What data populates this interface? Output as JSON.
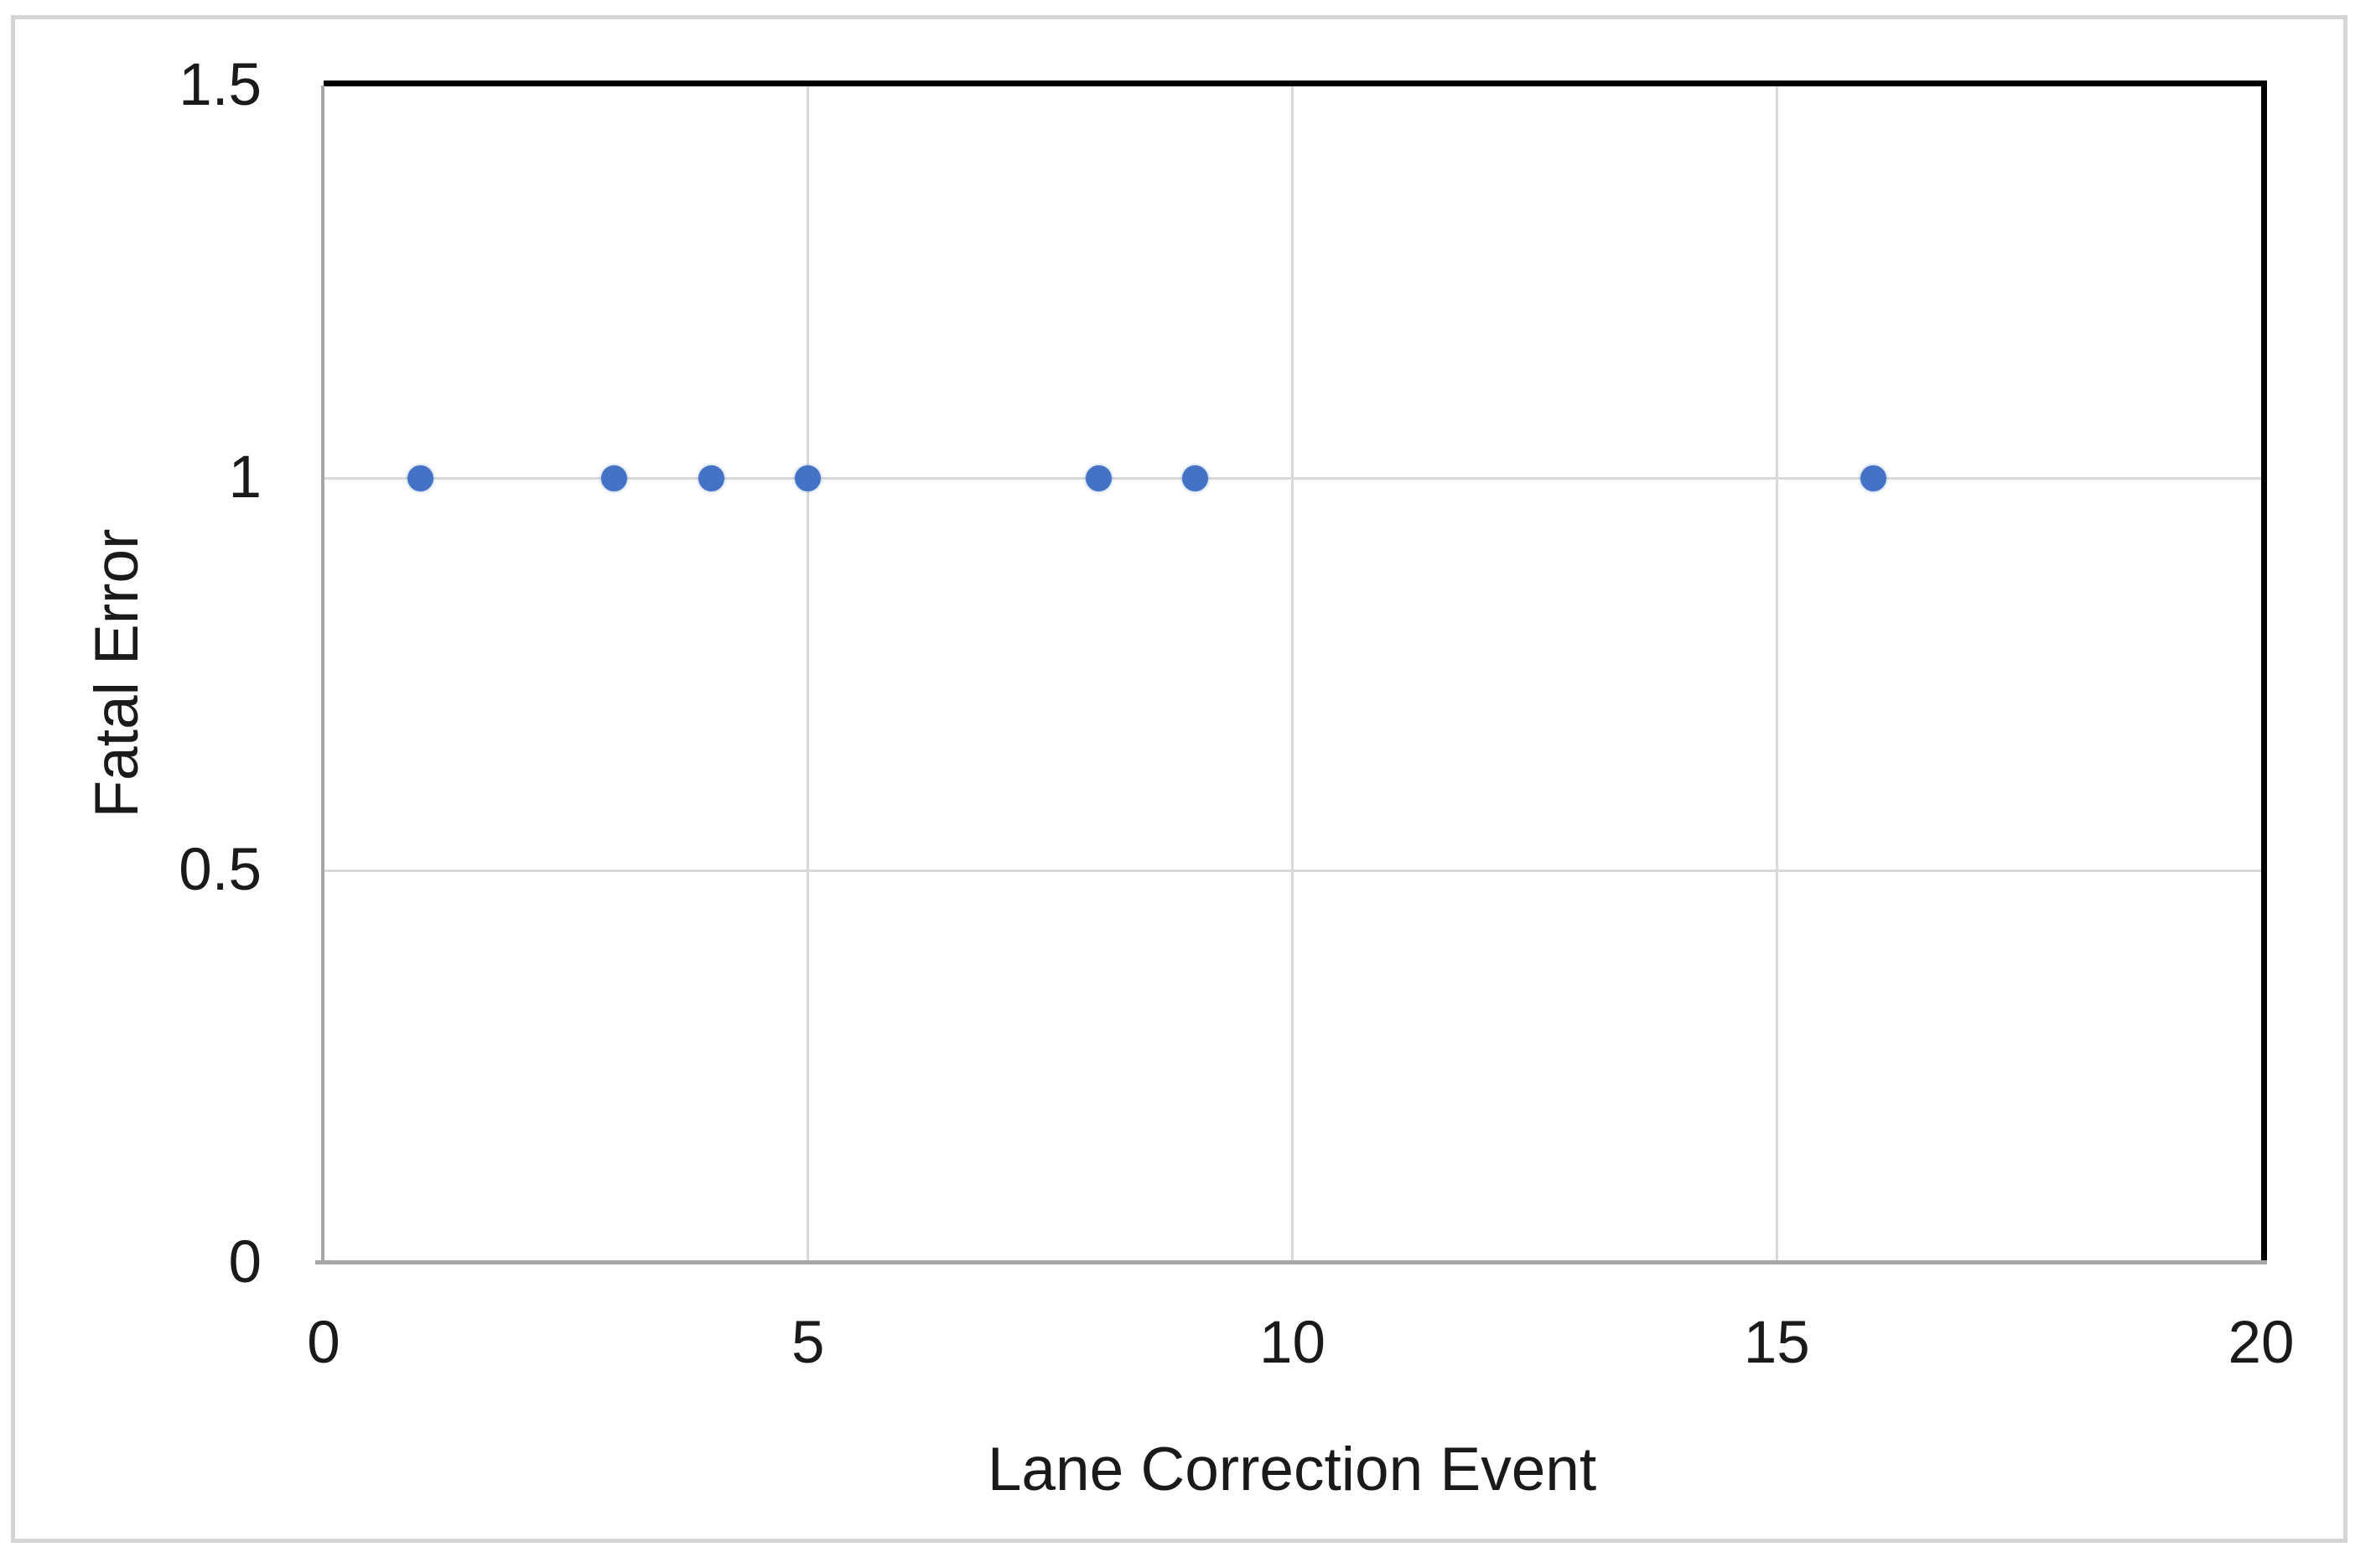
{
  "chart_data": {
    "type": "scatter",
    "title": "",
    "xlabel": "Lane Correction Event",
    "ylabel": "Fatal Error",
    "x": [
      1,
      3,
      4,
      5,
      8,
      9,
      16
    ],
    "y": [
      1,
      1,
      1,
      1,
      1,
      1,
      1
    ],
    "xlim": [
      0,
      20
    ],
    "ylim": [
      0,
      1.5
    ],
    "x_ticks": [
      0,
      5,
      10,
      15,
      20
    ],
    "x_tick_labels": [
      "0",
      "5",
      "10",
      "15",
      "20"
    ],
    "y_ticks": [
      0,
      0.5,
      1,
      1.5
    ],
    "y_tick_labels": [
      "0",
      "0.5",
      "1",
      "1.5"
    ],
    "x_gridlines": [
      5,
      10,
      15
    ],
    "y_gridlines": [
      0.5,
      1
    ],
    "grid": true,
    "legend": false,
    "legend_position": "none",
    "marker_color": "#4472C4",
    "gridline_color": "#D9D9D9",
    "axis_line_color": "#A6A6A6",
    "plot_border_color": "#000000",
    "frame_border_color": "#D5D5D5",
    "text_color": "#1A1A1A",
    "background_color": "#FFFFFF"
  }
}
